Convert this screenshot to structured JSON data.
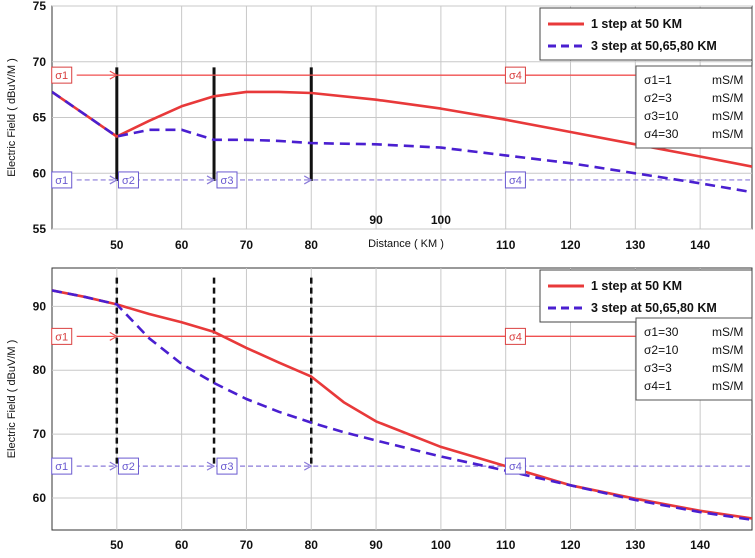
{
  "colors": {
    "single_step": "#e8393a",
    "multi_step": "#4a1fd0",
    "black": "#111111",
    "grid": "#c8c8c8",
    "label_red": "#d94040",
    "label_blue": "#6a5ad0",
    "arrow_red": "#f05050",
    "arrow_blue": "#8a7ad8"
  },
  "chart_data": [
    {
      "type": "line",
      "id": "top",
      "xlabel": "Distance ( KM )",
      "ylabel": "Electric Field ( dBuV/M )",
      "xlim": [
        40,
        148
      ],
      "ylim": [
        55,
        75
      ],
      "x_ticks": [
        50,
        60,
        70,
        80,
        110,
        120,
        130,
        140
      ],
      "inner_x_ticks": [
        90,
        100
      ],
      "y_ticks": [
        55,
        60,
        65,
        70,
        75
      ],
      "grid": true,
      "legend": [
        "1 step at 50 KM",
        "3 step at 50,65,80 KM"
      ],
      "series": [
        {
          "name": "1 step at 50 KM",
          "style": "solid",
          "x": [
            40,
            45,
            50,
            55,
            60,
            65,
            70,
            75,
            80,
            90,
            100,
            110,
            120,
            130,
            140,
            148
          ],
          "y": [
            67.3,
            65.3,
            63.3,
            64.7,
            66.0,
            66.9,
            67.3,
            67.3,
            67.2,
            66.6,
            65.8,
            64.8,
            63.7,
            62.6,
            61.5,
            60.6
          ]
        },
        {
          "name": "3 step at 50,65,80 KM",
          "style": "dashed",
          "x": [
            40,
            45,
            50,
            55,
            60,
            65,
            70,
            75,
            80,
            90,
            100,
            110,
            120,
            130,
            140,
            148
          ],
          "y": [
            67.3,
            65.3,
            63.3,
            63.9,
            63.9,
            63.0,
            63.0,
            62.9,
            62.7,
            62.6,
            62.3,
            61.6,
            60.9,
            60.0,
            59.1,
            58.3
          ]
        }
      ],
      "boundaries": [
        50,
        65,
        80
      ],
      "boundary_style": "solid",
      "boundary_range": [
        59.3,
        69.5
      ],
      "arrows": {
        "red_y": 68.8,
        "blue_y": 59.4
      },
      "conductivity_labels": {
        "red": [
          {
            "text": "σ1",
            "x": 41.5
          },
          {
            "text": "σ4",
            "x": 111.5
          }
        ],
        "blue": [
          {
            "text": "σ1",
            "x": 41.5
          },
          {
            "text": "σ2",
            "x": 51.8
          },
          {
            "text": "σ3",
            "x": 67.0
          },
          {
            "text": "σ4",
            "x": 111.5
          }
        ]
      },
      "sigma_box": [
        "σ1=1",
        "σ2=3",
        "σ3=10",
        "σ4=30"
      ],
      "sigma_unit": "mS/M"
    },
    {
      "type": "line",
      "id": "bottom",
      "xlabel": "",
      "ylabel": "Electric Field ( dBuV/M )",
      "xlim": [
        40,
        148
      ],
      "ylim": [
        55,
        96
      ],
      "x_ticks": [
        50,
        60,
        70,
        80,
        90,
        100,
        110,
        120,
        130,
        140
      ],
      "inner_x_ticks": [],
      "y_ticks": [
        60,
        70,
        80,
        90
      ],
      "grid": true,
      "legend": [
        "1 step at 50 KM",
        "3 step at 50,65,80 KM"
      ],
      "series": [
        {
          "name": "1 step at 50 KM",
          "style": "solid",
          "x": [
            40,
            45,
            50,
            55,
            60,
            65,
            70,
            75,
            80,
            85,
            90,
            100,
            110,
            120,
            130,
            140,
            148
          ],
          "y": [
            92.5,
            91.5,
            90.3,
            88.8,
            87.5,
            86.0,
            83.5,
            81.2,
            79.0,
            75.0,
            72.0,
            68.0,
            65.0,
            62.0,
            59.9,
            58.0,
            56.8
          ]
        },
        {
          "name": "3 step at 50,65,80 KM",
          "style": "dashed",
          "x": [
            40,
            45,
            50,
            55,
            60,
            65,
            70,
            75,
            80,
            85,
            90,
            100,
            110,
            120,
            130,
            140,
            148
          ],
          "y": [
            92.5,
            91.5,
            90.3,
            85.0,
            81.0,
            78.0,
            75.5,
            73.5,
            71.8,
            70.3,
            69.0,
            66.5,
            64.3,
            62.0,
            59.7,
            57.8,
            56.6
          ]
        }
      ],
      "boundaries": [
        50,
        65,
        80
      ],
      "boundary_style": "dashed",
      "boundary_range": [
        64.8,
        94.5
      ],
      "arrows": {
        "red_y": 85.3,
        "blue_y": 65.0
      },
      "conductivity_labels": {
        "red": [
          {
            "text": "σ1",
            "x": 41.5
          },
          {
            "text": "σ4",
            "x": 111.5
          }
        ],
        "blue": [
          {
            "text": "σ1",
            "x": 41.5
          },
          {
            "text": "σ2",
            "x": 51.8
          },
          {
            "text": "σ3",
            "x": 67.0
          },
          {
            "text": "σ4",
            "x": 111.5
          }
        ]
      },
      "sigma_box": [
        "σ1=30",
        "σ2=10",
        "σ3=3",
        "σ4=1"
      ],
      "sigma_unit": "mS/M"
    }
  ]
}
